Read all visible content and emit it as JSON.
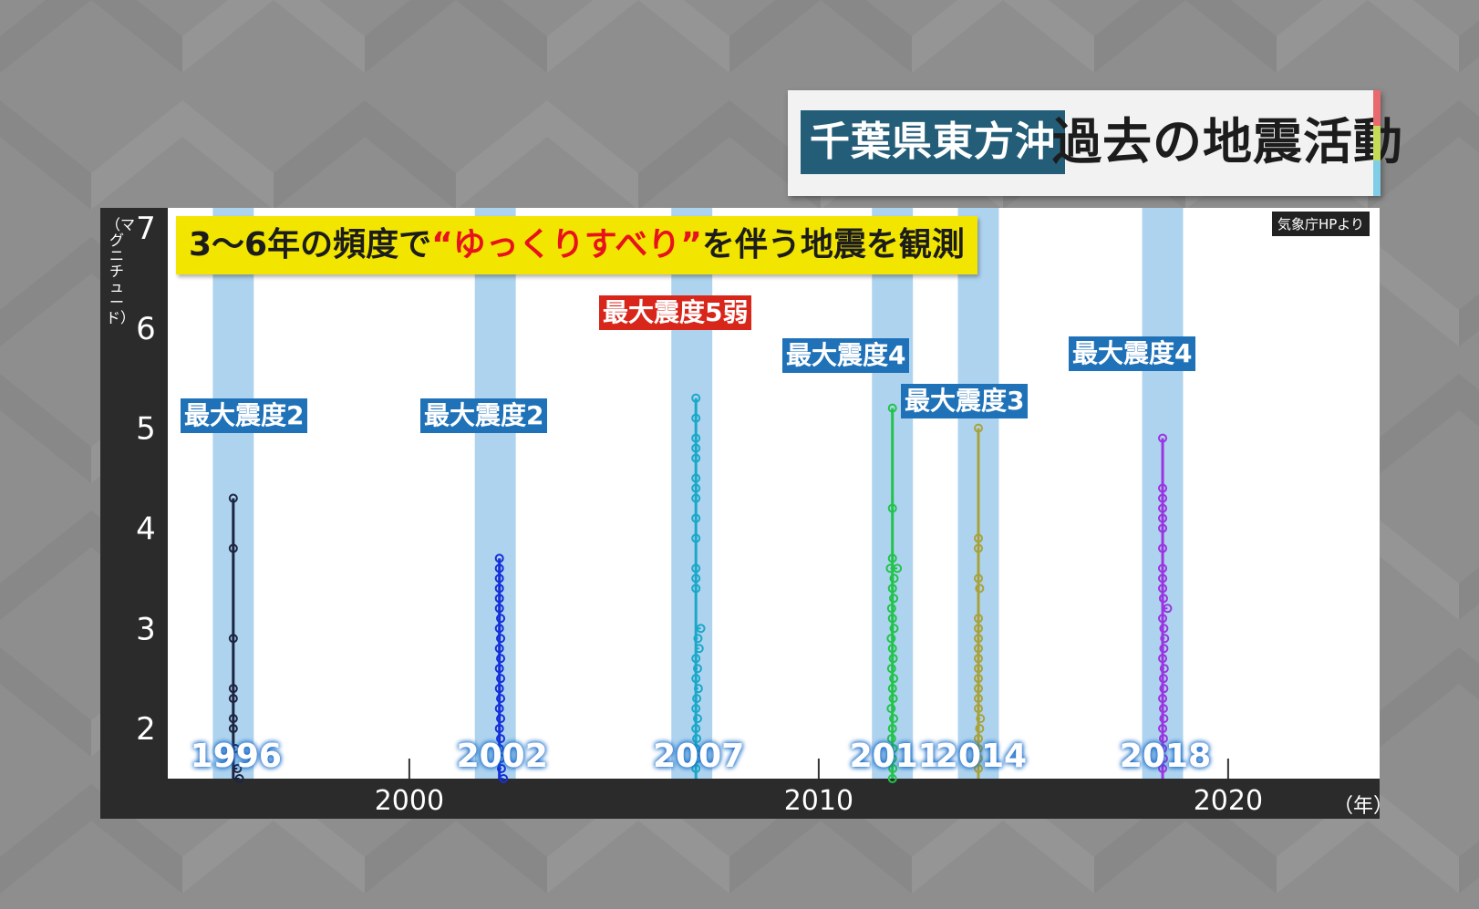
{
  "title": {
    "region": "千葉県東方沖",
    "main": "過去の地震活動",
    "stripe_colors": [
      "#e86a6e",
      "#c6dc58",
      "#7fcde6"
    ]
  },
  "headline": {
    "prefix": "3〜6年の頻度で",
    "highlight": "“ゆっくりすべり”",
    "suffix": "を伴う地震を観測"
  },
  "source": "気象庁HPより",
  "y_unit": "（マグニチュード）",
  "x_unit": "（年）",
  "colors": {
    "background": "#8e8e8e",
    "frame": "#2b2b2b",
    "plot_bg": "#ffffff",
    "band": "#aed3ef",
    "badge_blue": "#1f72b8",
    "badge_red": "#d8261b",
    "headline_bg": "#f2e600",
    "year_label": "#ffffff",
    "year_glow": "#1669c8"
  },
  "intensity_badges": [
    {
      "text": "最大震度2",
      "color": "blue"
    },
    {
      "text": "最大震度2",
      "color": "blue"
    },
    {
      "text": "最大震度5弱",
      "color": "red"
    },
    {
      "text": "最大震度4",
      "color": "blue"
    },
    {
      "text": "最大震度3",
      "color": "blue"
    },
    {
      "text": "最大震度4",
      "color": "blue"
    }
  ],
  "chart_data": {
    "type": "scatter",
    "xlim": [
      1994.1,
      2023.7
    ],
    "ylim": [
      1.5,
      7.2
    ],
    "y_ticks": [
      2,
      3,
      4,
      5,
      6,
      7
    ],
    "x_ticks": [
      2000,
      2010,
      2020
    ],
    "grid": false,
    "bands": [
      {
        "x0": 1995.2,
        "x1": 1996.2
      },
      {
        "x0": 2001.6,
        "x1": 2002.6
      },
      {
        "x0": 2006.4,
        "x1": 2007.4
      },
      {
        "x0": 2011.3,
        "x1": 2012.3
      },
      {
        "x0": 2013.4,
        "x1": 2014.4
      },
      {
        "x0": 2017.9,
        "x1": 2018.9
      }
    ],
    "series": [
      {
        "label": "1996",
        "color": "#1c2440",
        "x": 1995.7,
        "points": [
          4.3,
          3.8,
          2.9,
          2.4,
          2.3,
          2.1,
          2.0,
          1.8,
          1.6,
          1.5
        ],
        "jitter": [
          0,
          0,
          0,
          0,
          0,
          0,
          0,
          0.05,
          0.1,
          0.15
        ]
      },
      {
        "label": "2002",
        "color": "#1530d8",
        "x": 2002.2,
        "points": [
          3.7,
          3.6,
          3.5,
          3.4,
          3.3,
          3.2,
          3.1,
          3.0,
          2.9,
          2.8,
          2.7,
          2.6,
          2.5,
          2.4,
          2.3,
          2.2,
          2.1,
          2.0,
          1.9,
          1.8,
          1.7,
          1.6,
          1.5
        ],
        "jitter": [
          0,
          0,
          0,
          0,
          0,
          0,
          0.03,
          0,
          0.03,
          0,
          0.03,
          0,
          0.03,
          0,
          0.03,
          0,
          0.03,
          0,
          0.03,
          0,
          0.03,
          0.05,
          0.1
        ]
      },
      {
        "label": "2007",
        "color": "#1aa8c8",
        "x": 2007.0,
        "points": [
          5.3,
          5.1,
          4.9,
          4.8,
          4.7,
          4.5,
          4.4,
          4.3,
          4.1,
          3.9,
          3.6,
          3.5,
          3.4,
          3.0,
          2.9,
          2.8,
          2.7,
          2.6,
          2.5,
          2.4,
          2.3,
          2.2,
          2.1,
          2.0,
          1.9,
          1.8,
          1.7,
          1.6
        ],
        "jitter": [
          0,
          0,
          0,
          0,
          0,
          0,
          0,
          0,
          0,
          0,
          0,
          0,
          0,
          0.12,
          0.05,
          0.08,
          0,
          0.04,
          0,
          0.06,
          0.02,
          0,
          0.04,
          0,
          0.02,
          0,
          0.03,
          0
        ]
      },
      {
        "label": "2011",
        "color": "#22c34a",
        "x": 2011.8,
        "points": [
          5.2,
          4.2,
          3.7,
          3.6,
          3.6,
          3.5,
          3.4,
          3.3,
          3.2,
          3.1,
          3.0,
          2.9,
          2.8,
          2.7,
          2.6,
          2.5,
          2.4,
          2.3,
          2.2,
          2.1,
          2.0,
          1.9,
          1.8,
          1.7,
          1.6,
          1.5
        ],
        "jitter": [
          0,
          0,
          0,
          -0.05,
          0.12,
          0.04,
          0,
          0.03,
          -0.02,
          0,
          0.04,
          -0.03,
          0,
          0.02,
          -0.02,
          0.03,
          0,
          0.02,
          -0.03,
          0.03,
          0,
          -0.02,
          0.02,
          0,
          0.01,
          0
        ]
      },
      {
        "label": "2014",
        "color": "#a9a23a",
        "x": 2013.9,
        "points": [
          5.0,
          3.9,
          3.8,
          3.5,
          3.4,
          3.1,
          3.0,
          2.9,
          2.8,
          2.7,
          2.6,
          2.5,
          2.4,
          2.3,
          2.2,
          2.1,
          2.0,
          1.9,
          1.8,
          1.7,
          1.6
        ],
        "jitter": [
          0,
          0,
          0,
          0,
          0.03,
          0,
          0,
          0,
          0,
          0,
          0,
          0,
          0,
          0,
          0,
          0.05,
          0.03,
          0,
          0,
          0,
          0
        ]
      },
      {
        "label": "2018",
        "color": "#9a35e0",
        "x": 2018.4,
        "points": [
          4.9,
          4.4,
          4.3,
          4.2,
          4.1,
          4.0,
          3.8,
          3.6,
          3.5,
          3.4,
          3.3,
          3.2,
          3.1,
          3.0,
          2.9,
          2.8,
          2.7,
          2.6,
          2.5,
          2.4,
          2.3,
          2.2,
          2.1,
          2.0,
          1.9,
          1.8,
          1.7,
          1.6
        ],
        "jitter": [
          0,
          0,
          0,
          0,
          0,
          0,
          0,
          0,
          0,
          0,
          0.02,
          0.12,
          0,
          0.03,
          0.05,
          0.03,
          0,
          0.04,
          0.02,
          0.03,
          0,
          0.02,
          0.03,
          0,
          0.02,
          0,
          0.02,
          0
        ]
      }
    ]
  }
}
